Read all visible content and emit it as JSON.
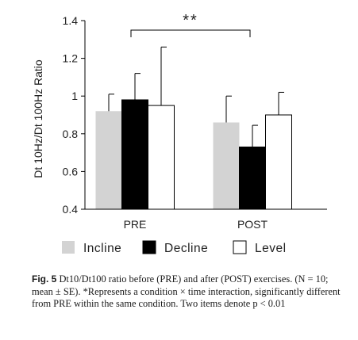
{
  "chart_data": {
    "type": "bar",
    "categories": [
      "PRE",
      "POST"
    ],
    "series": [
      {
        "name": "Incline",
        "color": "#d3d3d3",
        "values": [
          0.92,
          0.86
        ],
        "errors": [
          0.09,
          0.14
        ]
      },
      {
        "name": "Decline",
        "color": "#000000",
        "values": [
          0.98,
          0.73
        ],
        "errors": [
          0.14,
          0.115
        ]
      },
      {
        "name": "Level",
        "color": "#ffffff",
        "values": [
          0.95,
          0.9
        ],
        "errors": [
          0.31,
          0.12
        ]
      }
    ],
    "ylabel": "Dt 10Hz/Dt 100Hz Ratio",
    "xlabel": "",
    "ylim": [
      0.4,
      1.4
    ],
    "yticks": [
      "0.4",
      "0.6",
      "0.8",
      "1",
      "1.2",
      "1.4"
    ],
    "significance": {
      "label": "**",
      "groups": [
        "PRE",
        "POST"
      ]
    },
    "legend_position": "bottom",
    "grid": false
  },
  "caption": {
    "label": "Fig. 5",
    "text": " Dt10/Dt100 ratio before (PRE) and after (POST) exercises. (N = 10; mean ± SE). *Represents a condition × time interaction, significantly different from PRE within the same condition. Two items denote p < 0.01"
  }
}
